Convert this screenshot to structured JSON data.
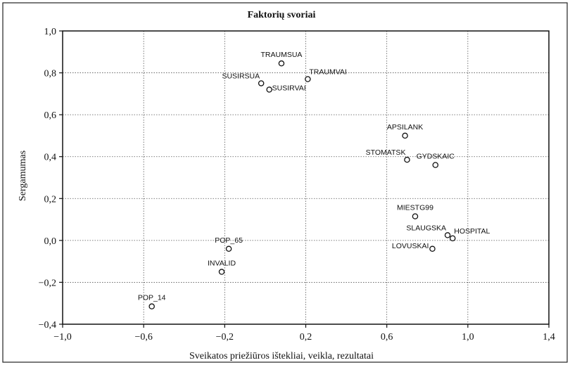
{
  "chart_data": {
    "type": "scatter",
    "title": "Faktorių svoriai",
    "xlabel": "Sveikatos priežiūros ištekliai, veikla, rezultatai",
    "ylabel": "Sergamumas",
    "xlim": [
      -1.0,
      1.4
    ],
    "ylim": [
      -0.4,
      1.0
    ],
    "xticks": [
      -1.0,
      -0.6,
      -0.2,
      0.2,
      0.6,
      1.0,
      1.4
    ],
    "yticks": [
      1.0,
      0.8,
      0.6,
      0.4,
      0.2,
      0.0,
      -0.2,
      -0.4
    ],
    "xtick_labels": [
      "−1,0",
      "−0,6",
      "−0,2",
      "0,2",
      "0,6",
      "1,0",
      "1,4"
    ],
    "ytick_labels": [
      "1,0",
      "0,8",
      "0,6",
      "0,4",
      "0,2",
      "0,0",
      "−0,2",
      "−0,4"
    ],
    "grid": true,
    "points": [
      {
        "label": "TRAUMSUA",
        "x": 0.08,
        "y": 0.845,
        "anchor": "above"
      },
      {
        "label": "TRAUMVAI",
        "x": 0.21,
        "y": 0.77,
        "anchor": "above-right"
      },
      {
        "label": "SUSIRSUA",
        "x": -0.02,
        "y": 0.75,
        "anchor": "above-left"
      },
      {
        "label": "SUSIRVAI",
        "x": 0.02,
        "y": 0.72,
        "anchor": "right"
      },
      {
        "label": "APSILANK",
        "x": 0.69,
        "y": 0.5,
        "anchor": "above"
      },
      {
        "label": "STOMATSK",
        "x": 0.7,
        "y": 0.385,
        "anchor": "above-left"
      },
      {
        "label": "GYDSKAIC",
        "x": 0.84,
        "y": 0.36,
        "anchor": "above"
      },
      {
        "label": "MIESTG99",
        "x": 0.74,
        "y": 0.115,
        "anchor": "above"
      },
      {
        "label": "SLAUGSKA",
        "x": 0.9,
        "y": 0.025,
        "anchor": "above-left"
      },
      {
        "label": "HOSPITAL",
        "x": 0.925,
        "y": 0.01,
        "anchor": "above-right"
      },
      {
        "label": "LOVUSKAI",
        "x": 0.825,
        "y": -0.04,
        "anchor": "left"
      },
      {
        "label": "POP_65",
        "x": -0.18,
        "y": -0.04,
        "anchor": "above"
      },
      {
        "label": "INVALID",
        "x": -0.215,
        "y": -0.15,
        "anchor": "above"
      },
      {
        "label": "POP_14",
        "x": -0.56,
        "y": -0.315,
        "anchor": "above"
      }
    ]
  }
}
